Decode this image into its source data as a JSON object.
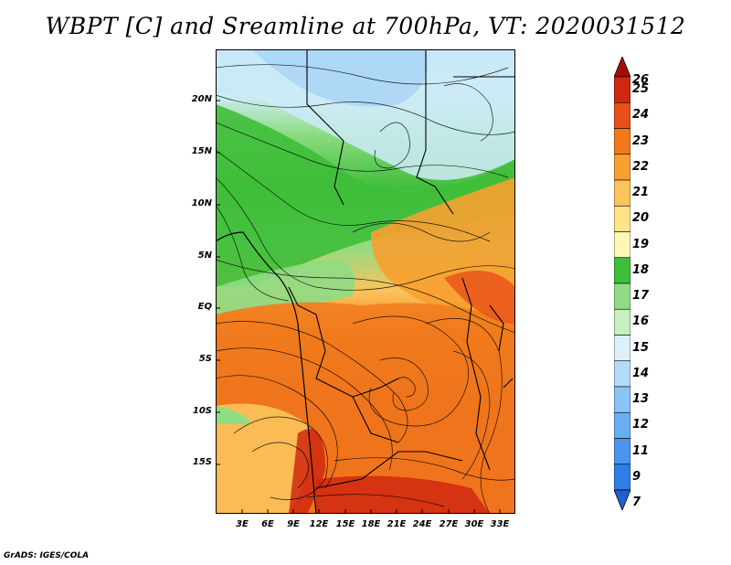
{
  "title": "WBPT [C] and Sreamline at 700hPa, VT: 2020031512",
  "footer": "GrADS: IGES/COLA",
  "lat_labels": [
    "20N",
    "15N",
    "10N",
    "5N",
    "EQ",
    "5S",
    "10S",
    "15S"
  ],
  "lon_labels": [
    "3E",
    "6E",
    "9E",
    "12E",
    "15E",
    "18E",
    "21E",
    "24E",
    "27E",
    "30E",
    "33E"
  ],
  "colorbar": {
    "labels": [
      "7",
      "9",
      "11",
      "12",
      "13",
      "14",
      "15",
      "16",
      "17",
      "18",
      "19",
      "20",
      "21",
      "22",
      "23",
      "24",
      "25",
      "26"
    ],
    "colors": [
      "#1f5fd1",
      "#2f7de6",
      "#4a95ee",
      "#6aaef2",
      "#8cc4f6",
      "#b4dafa",
      "#dcf0fc",
      "#c8efc0",
      "#8fdc84",
      "#3fbe3a",
      "#fff6b8",
      "#ffe48a",
      "#fcc45c",
      "#f7a030",
      "#f07a1c",
      "#e8501a",
      "#d02810",
      "#a80c08"
    ]
  }
}
